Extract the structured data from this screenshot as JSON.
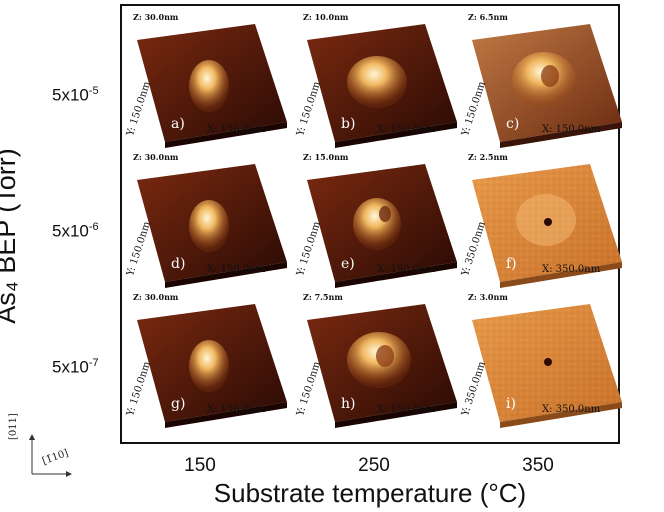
{
  "figure": {
    "ylabel": "As₄ BEP (Torr)",
    "xlabel": "Substrate temperature (°C)",
    "rows": [
      {
        "base": "5x10",
        "exp": "-5"
      },
      {
        "base": "5x10",
        "exp": "-6"
      },
      {
        "base": "5x10",
        "exp": "-7"
      }
    ],
    "columns": [
      "150",
      "250",
      "350"
    ],
    "direction_labels": {
      "vertical": "[011]",
      "horizontal": "[1̄10]"
    },
    "panels": [
      {
        "tag": "a)",
        "z": "Z: 30.0nm",
        "y": "Y: 150.0nm",
        "x": "X: 150.0nm",
        "style": "dark",
        "feature": "dome"
      },
      {
        "tag": "b)",
        "z": "Z: 10.0nm",
        "y": "Y: 150.0nm",
        "x": "X: 150.0nm",
        "style": "dark",
        "feature": "wide-dome"
      },
      {
        "tag": "c)",
        "z": "Z: 6.5nm",
        "y": "Y: 150.0nm",
        "x": "X: 150.0nm",
        "style": "mid",
        "feature": "ring"
      },
      {
        "tag": "d)",
        "z": "Z: 30.0nm",
        "y": "Y: 150.0nm",
        "x": "X: 150.0nm",
        "style": "dark",
        "feature": "dome"
      },
      {
        "tag": "e)",
        "z": "Z: 15.0nm",
        "y": "Y: 150.0nm",
        "x": "X: 150.0nm",
        "style": "dark",
        "feature": "crater"
      },
      {
        "tag": "f)",
        "z": "Z: 2.5nm",
        "y": "Y: 350.0nm",
        "x": "X: 350.0nm",
        "style": "flat",
        "feature": "hole-ring"
      },
      {
        "tag": "g)",
        "z": "Z: 30.0nm",
        "y": "Y: 150.0nm",
        "x": "X: 150.0nm",
        "style": "dark",
        "feature": "dome"
      },
      {
        "tag": "h)",
        "z": "Z: 7.5nm",
        "y": "Y: 150.0nm",
        "x": "X: 150.0nm",
        "style": "dark",
        "feature": "ring"
      },
      {
        "tag": "i)",
        "z": "Z: 3.0nm",
        "y": "Y: 350.0nm",
        "x": "X: 350.0nm",
        "style": "flat",
        "feature": "hole"
      }
    ]
  }
}
